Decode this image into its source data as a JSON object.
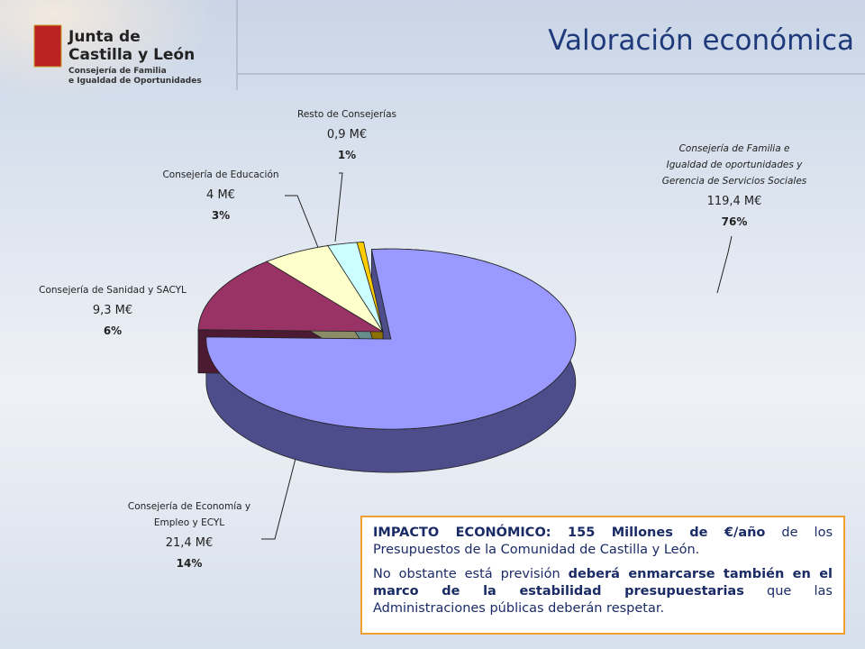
{
  "header": {
    "logo": [
      "Junta de",
      "Castilla y León"
    ],
    "logo_sub": [
      "Consejería de Familia",
      "e Igualdad de Oportunidades"
    ],
    "title": "Valoración económica"
  },
  "chart_data": {
    "type": "pie",
    "categories": [
      [
        "Consejería de Familia e",
        "Igualdad de oportunidades y",
        "Gerencia de Servicios Sociales"
      ],
      [
        "Consejería de Economía y",
        "Empleo y ECYL"
      ],
      [
        "Consejería de Sanidad y SACYL"
      ],
      [
        "Consejería de Educación"
      ],
      [
        "Resto de Consejerías"
      ]
    ],
    "values": [
      119.4,
      21.4,
      9.3,
      4,
      0.9
    ],
    "value_labels": [
      "119,4 M€",
      "21,4 M€",
      "9,3 M€",
      "4 M€",
      "0,9 M€"
    ],
    "percentages": [
      76,
      14,
      6,
      3,
      1
    ],
    "percentage_labels": [
      "76%",
      "14%",
      "6%",
      "3%",
      "1%"
    ],
    "colors": [
      "#9999ff",
      "#993366",
      "#ffffcc",
      "#ccffff",
      "#ffcc00"
    ],
    "side_colors": [
      "#4d4d8c",
      "#4d1a33",
      "#8c8c66",
      "#668c8c",
      "#8c7000"
    ]
  },
  "note": {
    "paragraphs": [
      [
        {
          "text": "IMPACTO ECONÓMICO: ",
          "bold": true
        },
        {
          "text": "155 Millones de €/año",
          "bold": true
        },
        {
          "text": " de los Presupuestos de la Comunidad de Castilla y León.",
          "bold": false
        }
      ],
      [
        {
          "text": "No obstante está previsión ",
          "bold": false
        },
        {
          "text": "deberá enmarcarse también en el marco de la estabilidad presupuestarias",
          "bold": true
        },
        {
          "text": " que las Administraciones públicas deberán respetar.",
          "bold": false
        }
      ]
    ]
  }
}
